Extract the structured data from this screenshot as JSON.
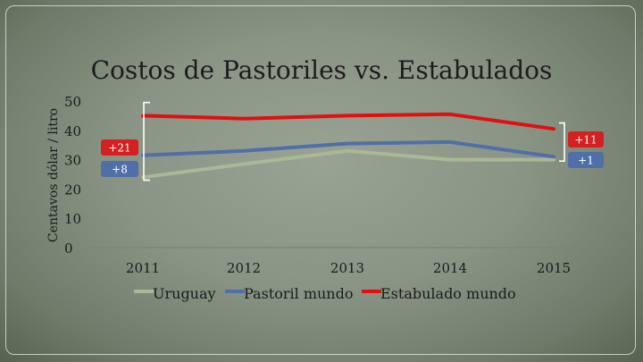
{
  "chart_data": {
    "type": "line",
    "title": "Costos de Pastoriles vs. Estabulados",
    "ylabel": "Centavos dólar / litro",
    "xlabel": "",
    "categories": [
      "2011",
      "2012",
      "2013",
      "2014",
      "2015"
    ],
    "yticks": [
      "0",
      "10",
      "20",
      "30",
      "40",
      "50"
    ],
    "ylim": [
      0,
      50
    ],
    "grid": false,
    "legend_position": "bottom",
    "series": [
      {
        "name": "Uruguay",
        "color": "#a9b896",
        "values": [
          24,
          28.5,
          33,
          30,
          30
        ]
      },
      {
        "name": "Pastoril mundo",
        "color": "#4f6fa8",
        "values": [
          31.5,
          33,
          35.5,
          36,
          31
        ]
      },
      {
        "name": "Estabulado mundo",
        "color": "#e01010",
        "values": [
          45,
          44,
          45,
          45.5,
          40.5
        ]
      }
    ],
    "annotations": [
      {
        "text": "+21",
        "color": "#d42020"
      },
      {
        "text": "+8",
        "color": "#4f6fa8"
      },
      {
        "text": "+11",
        "color": "#d42020"
      },
      {
        "text": "+1",
        "color": "#4f6fa8"
      }
    ]
  }
}
